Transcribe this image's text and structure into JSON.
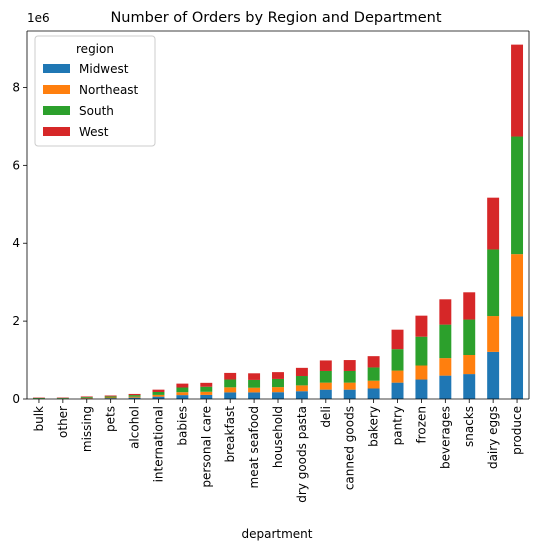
{
  "chart_data": {
    "type": "bar",
    "stacked": true,
    "title": "Number of Orders by Region and Department",
    "xlabel": "department",
    "ylabel": "",
    "y_offset_label": "1e6",
    "y_scale": 1000000,
    "ylim": [
      0,
      9.45
    ],
    "yticks": [
      0,
      2,
      4,
      6,
      8
    ],
    "grid": false,
    "legend": {
      "title": "region",
      "placement": "top-left"
    },
    "categories": [
      "bulk",
      "other",
      "missing",
      "pets",
      "alcohol",
      "international",
      "babies",
      "personal care",
      "breakfast",
      "meat seafood",
      "household",
      "dry goods pasta",
      "deli",
      "canned goods",
      "bakery",
      "pantry",
      "frozen",
      "beverages",
      "snacks",
      "dairy eggs",
      "produce"
    ],
    "series": [
      {
        "name": "Midwest",
        "color": "#1f77b4",
        "values": [
          0.008,
          0.009,
          0.016,
          0.022,
          0.035,
          0.06,
          0.1,
          0.105,
          0.17,
          0.17,
          0.175,
          0.2,
          0.24,
          0.24,
          0.27,
          0.42,
          0.5,
          0.6,
          0.64,
          1.21,
          2.12
        ]
      },
      {
        "name": "Northeast",
        "color": "#ff7f0e",
        "values": [
          0.006,
          0.007,
          0.011,
          0.016,
          0.025,
          0.045,
          0.075,
          0.08,
          0.13,
          0.12,
          0.13,
          0.15,
          0.18,
          0.18,
          0.2,
          0.31,
          0.36,
          0.45,
          0.49,
          0.92,
          1.6
        ]
      },
      {
        "name": "South",
        "color": "#2ca02c",
        "values": [
          0.012,
          0.013,
          0.022,
          0.03,
          0.04,
          0.075,
          0.12,
          0.13,
          0.2,
          0.2,
          0.21,
          0.24,
          0.3,
          0.3,
          0.34,
          0.55,
          0.74,
          0.86,
          0.91,
          1.71,
          3.02
        ]
      },
      {
        "name": "West",
        "color": "#d62728",
        "values": [
          0.01,
          0.01,
          0.016,
          0.022,
          0.03,
          0.06,
          0.1,
          0.1,
          0.17,
          0.17,
          0.175,
          0.21,
          0.27,
          0.28,
          0.29,
          0.5,
          0.54,
          0.65,
          0.7,
          1.33,
          2.36
        ]
      }
    ]
  }
}
